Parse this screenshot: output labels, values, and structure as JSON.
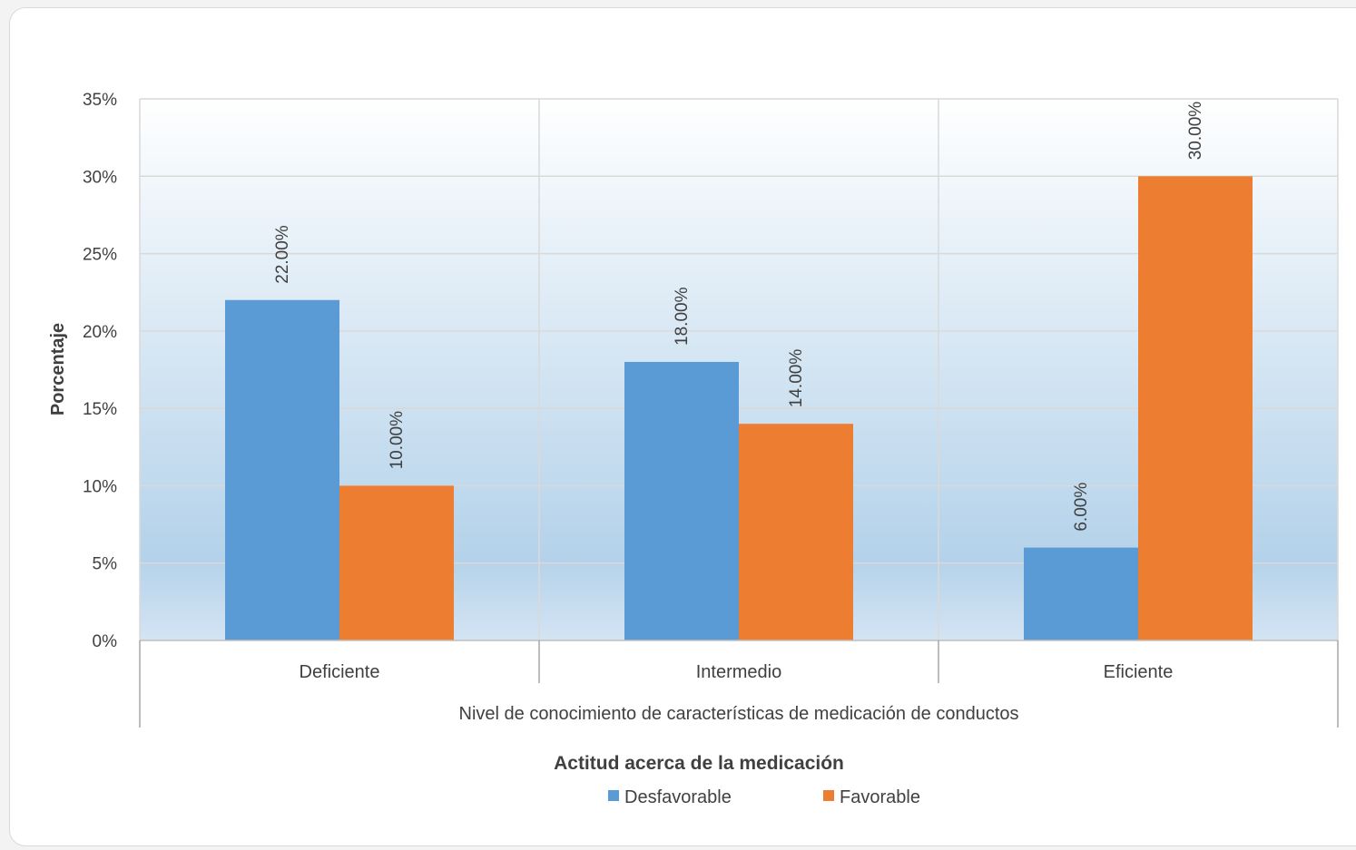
{
  "chart_data": {
    "type": "bar",
    "categories": [
      "Deficiente",
      "Intermedio",
      "Eficiente"
    ],
    "series": [
      {
        "name": "Desfavorable",
        "values": [
          22,
          18,
          6
        ],
        "labels": [
          "22.00%",
          "18.00%",
          "6.00%"
        ],
        "color": "#5b9bd5"
      },
      {
        "name": "Favorable",
        "values": [
          10,
          14,
          30
        ],
        "labels": [
          "10.00%",
          "14.00%",
          "30.00%"
        ],
        "color": "#ed7d31"
      }
    ],
    "xlabel": "Nivel de conocimiento de características de medicación de conductos",
    "ylabel": "Porcentaje",
    "ylim": [
      0,
      35
    ],
    "yticks": [
      0,
      5,
      10,
      15,
      20,
      25,
      30,
      35
    ],
    "ytick_labels": [
      "0%",
      "5%",
      "10%",
      "15%",
      "20%",
      "25%",
      "30%",
      "35%"
    ],
    "grid": true,
    "legend": {
      "title": "Actitud acerca de la medicación",
      "position": "bottom"
    },
    "background_gradient": [
      "#ffffff",
      "#b4d2ea",
      "#d4e4f3"
    ],
    "gridline_color": "#d9d9d9"
  }
}
